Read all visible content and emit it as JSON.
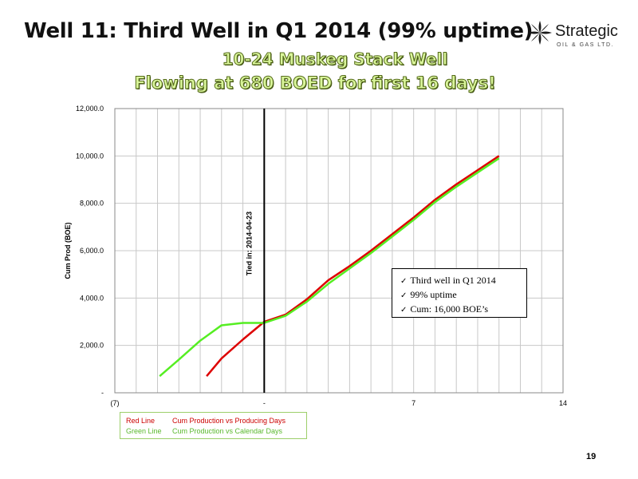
{
  "slide": {
    "title": "Well 11: Third Well in Q1 2014 (99% uptime)",
    "subtitle_line1": "10-24 Muskeg Stack Well",
    "subtitle_line2": "Flowing at 680 BOED for first 16 days!",
    "page_number": "19"
  },
  "logo": {
    "name": "Strategic",
    "tagline": "OIL & GAS LTD.",
    "icon": "flame-leaf-logo-icon",
    "color": "#1a1a1a"
  },
  "callout": {
    "items": [
      "Third well in Q1 2014",
      "99% uptime",
      "Cum: 16,000 BOE’s"
    ],
    "icon": "checkmark-icon"
  },
  "legend": {
    "red_label": "Red Line",
    "red_desc": "Cum Production vs Producing Days",
    "green_label": "Green Line",
    "green_desc": "Cum Production vs Calendar Days"
  },
  "chart_data": {
    "type": "line",
    "ylabel": "Cum Prod (BOE)",
    "xlabel": "",
    "xlim": [
      -7,
      14
    ],
    "ylim": [
      0,
      12000
    ],
    "x_tick_values": [
      -7,
      0,
      7,
      14
    ],
    "x_tick_labels": [
      "(7)",
      "-",
      "7",
      "14"
    ],
    "y_tick_values": [
      0,
      2000,
      4000,
      6000,
      8000,
      10000,
      12000
    ],
    "y_tick_labels": [
      "-",
      "2,000.0",
      "4,000.0",
      "6,000.0",
      "8,000.0",
      "10,000.0",
      "12,000.0"
    ],
    "grid": true,
    "vertical_marker": {
      "x": 0,
      "label": "Tied in: 2014-04-23",
      "color": "#000000"
    },
    "series": [
      {
        "name": "Red Line",
        "color": "#dd0000",
        "x": [
          -2.7,
          -2,
          -1,
          0,
          1,
          2,
          3,
          4,
          5,
          6,
          7,
          8,
          9,
          10,
          11
        ],
        "y": [
          700,
          1450,
          2250,
          3000,
          3300,
          3950,
          4750,
          5350,
          6000,
          6700,
          7400,
          8150,
          8800,
          9400,
          10000
        ]
      },
      {
        "name": "Green Line",
        "color": "#55ee22",
        "x": [
          -4.9,
          -4,
          -3,
          -2,
          -1,
          0,
          1,
          2,
          3,
          4,
          5,
          6,
          7,
          8,
          9,
          10,
          11
        ],
        "y": [
          700,
          1400,
          2200,
          2850,
          2950,
          2950,
          3250,
          3850,
          4600,
          5250,
          5900,
          6600,
          7300,
          8050,
          8700,
          9300,
          9900
        ]
      }
    ]
  }
}
